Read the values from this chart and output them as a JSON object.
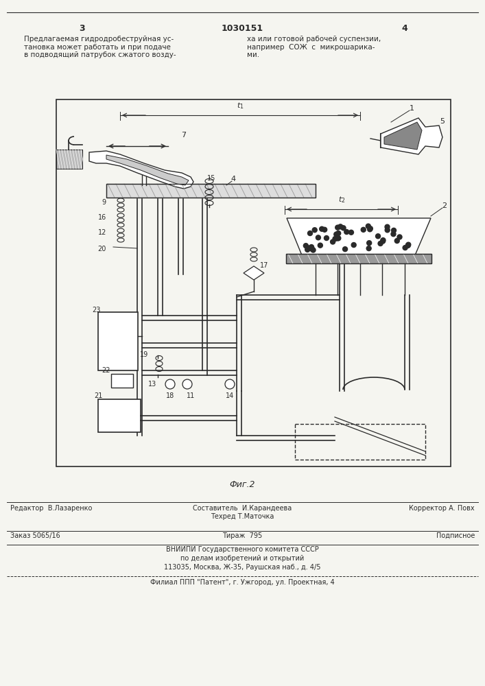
{
  "page_number_left": "3",
  "page_number_center": "1030151",
  "page_number_right": "4",
  "text_left": "Предлагаемая гидродробеструйная ус-\nтановка может работать и при подаче\nв подводящий патрубок сжатого возду-",
  "text_right": "ха или готовой рабочей суспензии,\nнапример  СОЖ  с  микрошарика-\nми.",
  "fig_label": "Фиг.2",
  "footer_line1_left": "Редактор  В.Лазаренко",
  "footer_line1_center": "Составитель  И.Карандеева\nТехред Т.Маточка",
  "footer_line1_right": "Корректор А. Повх",
  "footer_line2_left": "Заказ 5065/16",
  "footer_line2_center": "Тираж  795",
  "footer_line2_right": "Подписное",
  "footer_line3": "ВНИИПИ Государственного комитета СССР",
  "footer_line4": "по делам изобретений и открытий",
  "footer_line5": "113035, Москва, Ж-35, Раушская наб., д. 4/5",
  "footer_line6": "Филиал ППП \"Патент\", г. Ужгород, ул. Проектная, 4",
  "bg_color": "#f5f5f0",
  "line_color": "#2a2a2a"
}
